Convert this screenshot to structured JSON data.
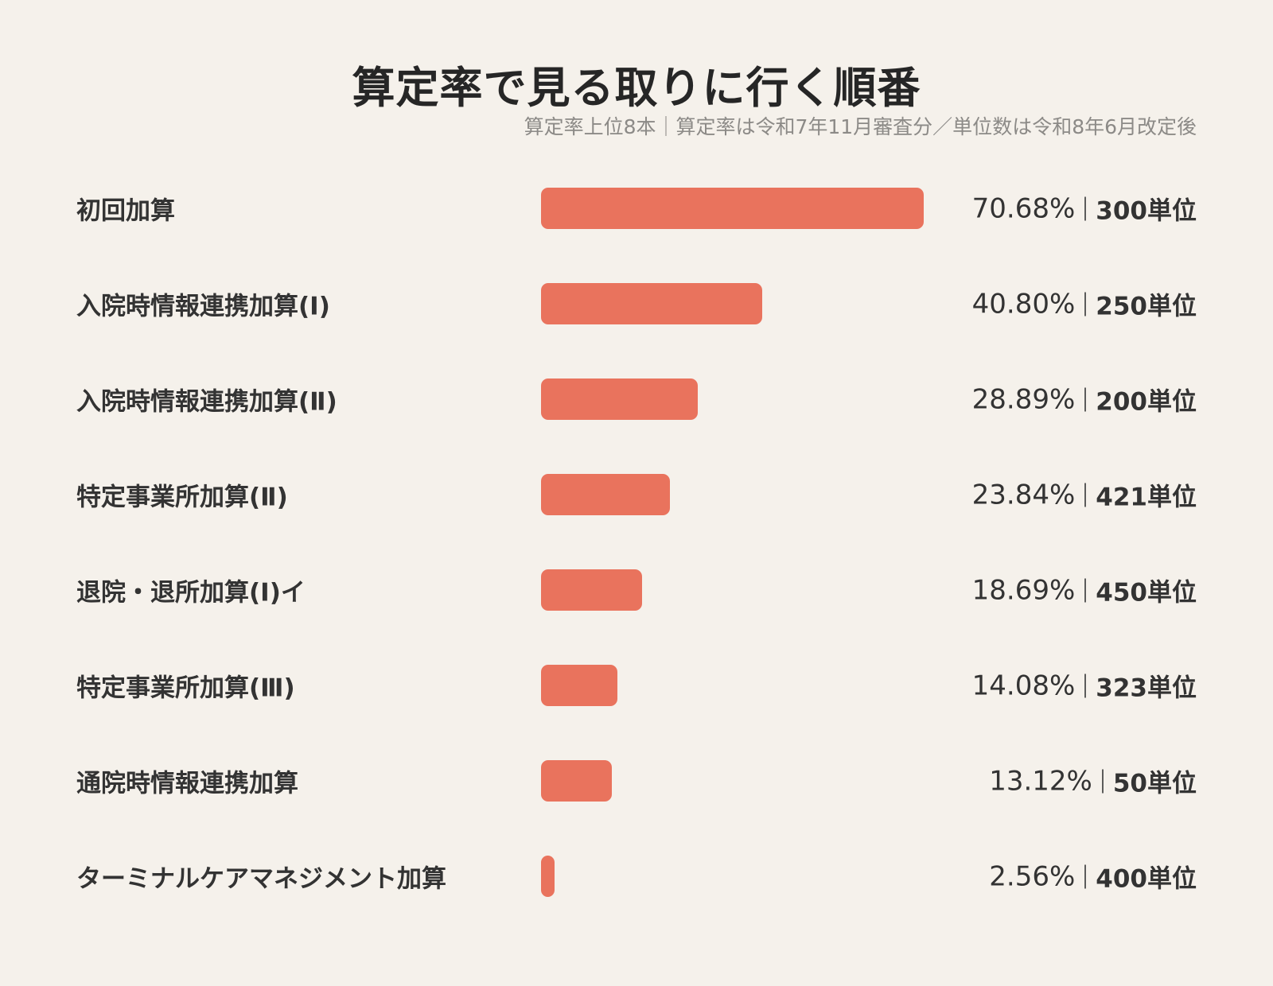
{
  "title": "算定率で見る取りに行く順番",
  "subtitle": "算定率上位8本｜算定率は令和7年11月審査分／単位数は令和8年6月改定後",
  "chart_data": {
    "type": "bar",
    "title": "算定率で見る取りに行く順番",
    "subtitle": "算定率上位8本｜算定率は令和7年11月審査分／単位数は令和8年6月改定後",
    "orientation": "horizontal",
    "grid": false,
    "legend": "none",
    "xlim": [
      0,
      70.68
    ],
    "categories": [
      "初回加算",
      "入院時情報連携加算(Ⅰ)",
      "入院時情報連携加算(Ⅱ)",
      "特定事業所加算(Ⅱ)",
      "退院・退所加算(Ⅰ)イ",
      "特定事業所加算(Ⅲ)",
      "通院時情報連携加算",
      "ターミナルケアマネジメント加算"
    ],
    "values": [
      70.68,
      40.8,
      28.89,
      23.84,
      18.69,
      14.08,
      13.12,
      2.56
    ],
    "value_labels": [
      "70.68%",
      "40.80%",
      "28.89%",
      "23.84%",
      "18.69%",
      "14.08%",
      "13.12%",
      "2.56%"
    ],
    "units": [
      "300単位",
      "250単位",
      "200単位",
      "421単位",
      "450単位",
      "323単位",
      "50単位",
      "400単位"
    ],
    "colors": {
      "bar": "#e9735d",
      "background": "#f5f1eb",
      "text": "#333333",
      "subtitle": "#8c8a87"
    }
  }
}
